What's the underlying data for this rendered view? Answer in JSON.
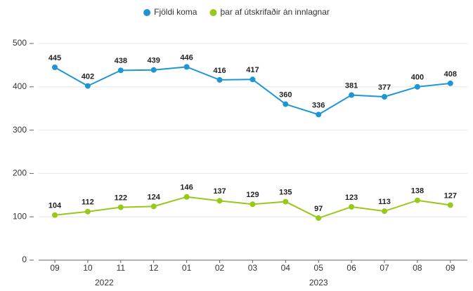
{
  "chart_data": {
    "type": "line",
    "categories": [
      "09",
      "10",
      "11",
      "12",
      "01",
      "02",
      "03",
      "04",
      "05",
      "06",
      "07",
      "08",
      "09"
    ],
    "x_groups": [
      {
        "label": "2022",
        "span": [
          0,
          3
        ]
      },
      {
        "label": "2023",
        "span": [
          4,
          12
        ]
      }
    ],
    "series": [
      {
        "name": "Fjöldi koma",
        "color": "#1f96d4",
        "values": [
          445,
          402,
          438,
          439,
          446,
          416,
          417,
          360,
          336,
          381,
          377,
          400,
          408
        ]
      },
      {
        "name": "þar af útskrifaðir án innlagnar",
        "color": "#97c81a",
        "values": [
          104,
          112,
          122,
          124,
          146,
          137,
          129,
          135,
          97,
          123,
          113,
          138,
          127
        ]
      }
    ],
    "ylim": [
      0,
      500
    ],
    "yticks": [
      0,
      100,
      200,
      300,
      400,
      500
    ],
    "grid": true,
    "legend": "top"
  }
}
